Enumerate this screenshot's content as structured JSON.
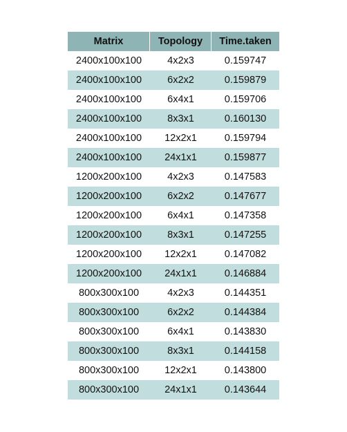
{
  "table": {
    "headers": [
      "Matrix",
      "Topology",
      "Time.taken"
    ],
    "rows": [
      [
        "2400x100x100",
        "4x2x3",
        "0.159747"
      ],
      [
        "2400x100x100",
        "6x2x2",
        "0.159879"
      ],
      [
        "2400x100x100",
        "6x4x1",
        "0.159706"
      ],
      [
        "2400x100x100",
        "8x3x1",
        "0.160130"
      ],
      [
        "2400x100x100",
        "12x2x1",
        "0.159794"
      ],
      [
        "2400x100x100",
        "24x1x1",
        "0.159877"
      ],
      [
        "1200x200x100",
        "4x2x3",
        "0.147583"
      ],
      [
        "1200x200x100",
        "6x2x2",
        "0.147677"
      ],
      [
        "1200x200x100",
        "6x4x1",
        "0.147358"
      ],
      [
        "1200x200x100",
        "8x3x1",
        "0.147255"
      ],
      [
        "1200x200x100",
        "12x2x1",
        "0.147082"
      ],
      [
        "1200x200x100",
        "24x1x1",
        "0.146884"
      ],
      [
        "800x300x100",
        "4x2x3",
        "0.144351"
      ],
      [
        "800x300x100",
        "6x2x2",
        "0.144384"
      ],
      [
        "800x300x100",
        "6x4x1",
        "0.143830"
      ],
      [
        "800x300x100",
        "8x3x1",
        "0.144158"
      ],
      [
        "800x300x100",
        "12x2x1",
        "0.143800"
      ],
      [
        "800x300x100",
        "24x1x1",
        "0.143644"
      ]
    ]
  },
  "colors": {
    "header_bg": "#8fb4b5",
    "stripe_bg": "#c2dddd",
    "row_bg": "#ffffff"
  }
}
